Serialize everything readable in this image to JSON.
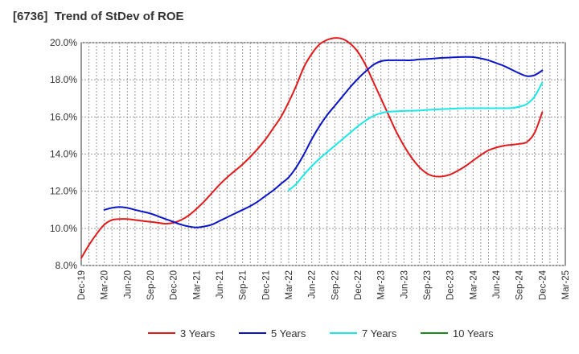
{
  "chart_data": {
    "type": "line",
    "title": "[6736]  Trend of StDev of ROE",
    "xlabel": "",
    "ylabel": "",
    "ylim": [
      8.0,
      20.0
    ],
    "y_ticks": [
      "8.0%",
      "10.0%",
      "12.0%",
      "14.0%",
      "16.0%",
      "18.0%",
      "20.0%"
    ],
    "x_ticks": [
      "Dec-19",
      "Mar-20",
      "Jun-20",
      "Sep-20",
      "Dec-20",
      "Mar-21",
      "Jun-21",
      "Sep-21",
      "Dec-21",
      "Mar-22",
      "Jun-22",
      "Sep-22",
      "Dec-22",
      "Mar-23",
      "Jun-23",
      "Sep-23",
      "Dec-23",
      "Mar-24",
      "Jun-24",
      "Sep-24",
      "Dec-24",
      "Mar-25"
    ],
    "grid": true,
    "legend_position": "bottom",
    "series": [
      {
        "name": "3 Years",
        "color": "#e31a1c",
        "points": [
          [
            "Dec-19",
            8.4
          ],
          [
            "Jan-20",
            9.1
          ],
          [
            "Feb-20",
            9.7
          ],
          [
            "Mar-20",
            10.2
          ],
          [
            "Apr-20",
            10.45
          ],
          [
            "May-20",
            10.5
          ],
          [
            "Jun-20",
            10.5
          ],
          [
            "Jul-20",
            10.45
          ],
          [
            "Aug-20",
            10.4
          ],
          [
            "Sep-20",
            10.35
          ],
          [
            "Oct-20",
            10.3
          ],
          [
            "Nov-20",
            10.25
          ],
          [
            "Dec-20",
            10.3
          ],
          [
            "Jan-21",
            10.45
          ],
          [
            "Feb-21",
            10.7
          ],
          [
            "Mar-21",
            11.05
          ],
          [
            "Apr-21",
            11.45
          ],
          [
            "May-21",
            11.9
          ],
          [
            "Jun-21",
            12.35
          ],
          [
            "Jul-21",
            12.75
          ],
          [
            "Aug-21",
            13.1
          ],
          [
            "Sep-21",
            13.45
          ],
          [
            "Oct-21",
            13.85
          ],
          [
            "Nov-21",
            14.3
          ],
          [
            "Dec-21",
            14.8
          ],
          [
            "Jan-22",
            15.4
          ],
          [
            "Feb-22",
            16.0
          ],
          [
            "Mar-22",
            16.8
          ],
          [
            "Apr-22",
            17.7
          ],
          [
            "May-22",
            18.7
          ],
          [
            "Jun-22",
            19.4
          ],
          [
            "Jul-22",
            19.9
          ],
          [
            "Aug-22",
            20.15
          ],
          [
            "Sep-22",
            20.25
          ],
          [
            "Oct-22",
            20.2
          ],
          [
            "Nov-22",
            19.95
          ],
          [
            "Dec-22",
            19.5
          ],
          [
            "Jan-23",
            18.8
          ],
          [
            "Feb-23",
            17.9
          ],
          [
            "Mar-23",
            17.0
          ],
          [
            "Apr-23",
            16.1
          ],
          [
            "May-23",
            15.2
          ],
          [
            "Jun-23",
            14.45
          ],
          [
            "Jul-23",
            13.8
          ],
          [
            "Aug-23",
            13.3
          ],
          [
            "Sep-23",
            12.95
          ],
          [
            "Oct-23",
            12.8
          ],
          [
            "Nov-23",
            12.8
          ],
          [
            "Dec-23",
            12.9
          ],
          [
            "Jan-24",
            13.1
          ],
          [
            "Feb-24",
            13.35
          ],
          [
            "Mar-24",
            13.65
          ],
          [
            "Apr-24",
            13.95
          ],
          [
            "May-24",
            14.2
          ],
          [
            "Jun-24",
            14.35
          ],
          [
            "Jul-24",
            14.45
          ],
          [
            "Aug-24",
            14.5
          ],
          [
            "Sep-24",
            14.55
          ],
          [
            "Oct-24",
            14.65
          ],
          [
            "Nov-24",
            15.15
          ],
          [
            "Dec-24",
            16.25
          ]
        ]
      },
      {
        "name": "5 Years",
        "color": "#0a14c8",
        "points": [
          [
            "Mar-20",
            11.0
          ],
          [
            "Apr-20",
            11.1
          ],
          [
            "May-20",
            11.15
          ],
          [
            "Jun-20",
            11.1
          ],
          [
            "Jul-20",
            11.0
          ],
          [
            "Aug-20",
            10.9
          ],
          [
            "Sep-20",
            10.8
          ],
          [
            "Oct-20",
            10.65
          ],
          [
            "Nov-20",
            10.5
          ],
          [
            "Dec-20",
            10.35
          ],
          [
            "Jan-21",
            10.2
          ],
          [
            "Feb-21",
            10.1
          ],
          [
            "Mar-21",
            10.05
          ],
          [
            "Apr-21",
            10.1
          ],
          [
            "May-21",
            10.2
          ],
          [
            "Jun-21",
            10.4
          ],
          [
            "Jul-21",
            10.6
          ],
          [
            "Aug-21",
            10.8
          ],
          [
            "Sep-21",
            11.0
          ],
          [
            "Oct-21",
            11.2
          ],
          [
            "Nov-21",
            11.45
          ],
          [
            "Dec-21",
            11.75
          ],
          [
            "Jan-22",
            12.05
          ],
          [
            "Feb-22",
            12.4
          ],
          [
            "Mar-22",
            12.75
          ],
          [
            "Apr-22",
            13.3
          ],
          [
            "May-22",
            14.0
          ],
          [
            "Jun-22",
            14.8
          ],
          [
            "Jul-22",
            15.5
          ],
          [
            "Aug-22",
            16.1
          ],
          [
            "Sep-22",
            16.6
          ],
          [
            "Oct-22",
            17.1
          ],
          [
            "Nov-22",
            17.6
          ],
          [
            "Dec-22",
            18.05
          ],
          [
            "Jan-23",
            18.45
          ],
          [
            "Feb-23",
            18.8
          ],
          [
            "Mar-23",
            19.0
          ],
          [
            "Apr-23",
            19.05
          ],
          [
            "May-23",
            19.05
          ],
          [
            "Jun-23",
            19.05
          ],
          [
            "Jul-23",
            19.05
          ],
          [
            "Aug-23",
            19.1
          ],
          [
            "Sep-23",
            19.12
          ],
          [
            "Oct-23",
            19.15
          ],
          [
            "Nov-23",
            19.18
          ],
          [
            "Dec-23",
            19.2
          ],
          [
            "Jan-24",
            19.22
          ],
          [
            "Feb-24",
            19.23
          ],
          [
            "Mar-24",
            19.22
          ],
          [
            "Apr-24",
            19.15
          ],
          [
            "May-24",
            19.05
          ],
          [
            "Jun-24",
            18.9
          ],
          [
            "Jul-24",
            18.75
          ],
          [
            "Aug-24",
            18.55
          ],
          [
            "Sep-24",
            18.35
          ],
          [
            "Oct-24",
            18.2
          ],
          [
            "Nov-24",
            18.25
          ],
          [
            "Dec-24",
            18.5
          ]
        ]
      },
      {
        "name": "7 Years",
        "color": "#1ae8e8",
        "points": [
          [
            "Mar-22",
            12.05
          ],
          [
            "Apr-22",
            12.4
          ],
          [
            "May-22",
            12.9
          ],
          [
            "Jun-22",
            13.35
          ],
          [
            "Jul-22",
            13.75
          ],
          [
            "Aug-22",
            14.1
          ],
          [
            "Sep-22",
            14.45
          ],
          [
            "Oct-22",
            14.8
          ],
          [
            "Nov-22",
            15.15
          ],
          [
            "Dec-22",
            15.5
          ],
          [
            "Jan-23",
            15.8
          ],
          [
            "Feb-23",
            16.05
          ],
          [
            "Mar-23",
            16.2
          ],
          [
            "Apr-23",
            16.28
          ],
          [
            "May-23",
            16.3
          ],
          [
            "Jun-23",
            16.32
          ],
          [
            "Jul-23",
            16.33
          ],
          [
            "Aug-23",
            16.35
          ],
          [
            "Sep-23",
            16.38
          ],
          [
            "Oct-23",
            16.4
          ],
          [
            "Nov-23",
            16.42
          ],
          [
            "Dec-23",
            16.44
          ],
          [
            "Jan-24",
            16.46
          ],
          [
            "Feb-24",
            16.47
          ],
          [
            "Mar-24",
            16.47
          ],
          [
            "Apr-24",
            16.47
          ],
          [
            "May-24",
            16.47
          ],
          [
            "Jun-24",
            16.47
          ],
          [
            "Jul-24",
            16.47
          ],
          [
            "Aug-24",
            16.48
          ],
          [
            "Sep-24",
            16.55
          ],
          [
            "Oct-24",
            16.7
          ],
          [
            "Nov-24",
            17.1
          ],
          [
            "Dec-24",
            17.85
          ]
        ]
      },
      {
        "name": "10 Years",
        "color": "#1a8a1a",
        "points": []
      }
    ]
  }
}
